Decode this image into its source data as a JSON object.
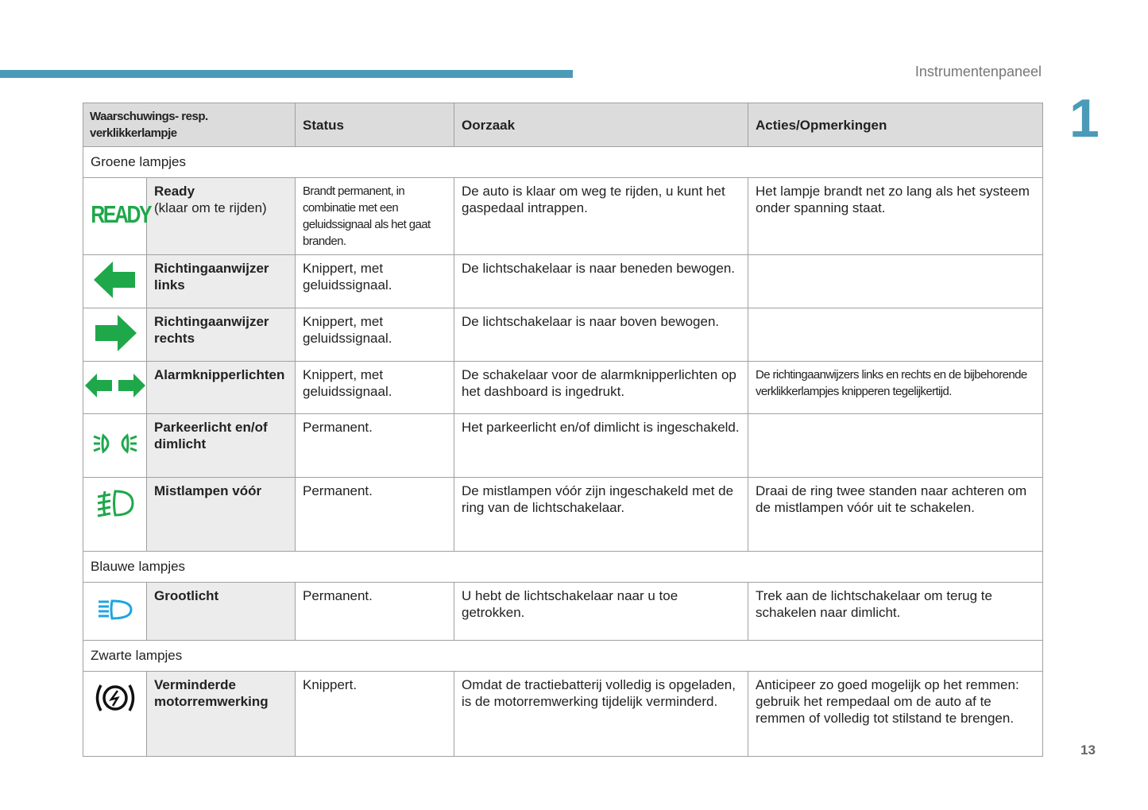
{
  "header": {
    "section": "Instrumentenpaneel",
    "chapter": "1",
    "page": "13"
  },
  "columns": [
    "Waarschuwings- resp. verklikkerlampje",
    "Status",
    "Oorzaak",
    "Acties/Opmerkingen"
  ],
  "colors": {
    "accent": "#4a9bb8",
    "green": "#1ea84a",
    "blue": "#1ca6e0",
    "black": "#111111"
  },
  "sections": {
    "green": "Groene lampjes",
    "blue": "Blauwe lampjes",
    "black": "Zwarte lampjes"
  },
  "rows": [
    {
      "icon": "ready-icon",
      "icon_text": "READY",
      "label": "Ready",
      "sublabel": "(klaar om te rijden)",
      "status": "Brandt permanent, in combinatie met een geluidssignaal als het gaat branden.",
      "cause": "De auto is klaar om weg te rijden, u kunt het gaspedaal intrappen.",
      "action": "Het lampje brandt net zo lang als het systeem onder spanning staat."
    },
    {
      "icon": "arrow-left-icon",
      "label": "Richtingaanwijzer links",
      "status": "Knippert, met geluidssignaal.",
      "cause": "De lichtschakelaar is naar beneden bewogen.",
      "action": ""
    },
    {
      "icon": "arrow-right-icon",
      "label": "Richtingaanwijzer rechts",
      "status": "Knippert, met geluidssignaal.",
      "cause": "De lichtschakelaar is naar boven bewogen.",
      "action": ""
    },
    {
      "icon": "hazard-arrows-icon",
      "label": "Alarmknipperlichten",
      "status": "Knippert, met geluidssignaal.",
      "cause": "De schakelaar voor de alarmknipperlichten op het dashboard is ingedrukt.",
      "action": "De richtingaanwijzers links en rechts en de bijbehorende verklikkerlampjes knipperen tegelijkertijd."
    },
    {
      "icon": "parking-light-icon",
      "label": "Parkeerlicht en/of dimlicht",
      "status": "Permanent.",
      "cause": "Het parkeerlicht en/of dimlicht is ingeschakeld.",
      "action": ""
    },
    {
      "icon": "front-fog-light-icon",
      "label": "Mistlampen vóór",
      "status": "Permanent.",
      "cause": "De mistlampen vóór zijn ingeschakeld met de ring van de lichtschakelaar.",
      "action": "Draai de ring twee standen naar achteren om de mistlampen vóór uit te schakelen."
    },
    {
      "icon": "high-beam-icon",
      "label": "Grootlicht",
      "status": "Permanent.",
      "cause": "U hebt de lichtschakelaar naar u toe getrokken.",
      "action": "Trek aan de lichtschakelaar om terug te schakelen naar dimlicht."
    },
    {
      "icon": "reduced-regen-braking-icon",
      "label": "Verminderde motorremwerking",
      "status": "Knippert.",
      "cause": "Omdat de tractiebatterij volledig is opgeladen, is de motorremwerking tijdelijk verminderd.",
      "action": "Anticipeer zo goed mogelijk op het remmen: gebruik het rempedaal om de auto af te remmen of volledig tot stilstand te brengen."
    }
  ]
}
